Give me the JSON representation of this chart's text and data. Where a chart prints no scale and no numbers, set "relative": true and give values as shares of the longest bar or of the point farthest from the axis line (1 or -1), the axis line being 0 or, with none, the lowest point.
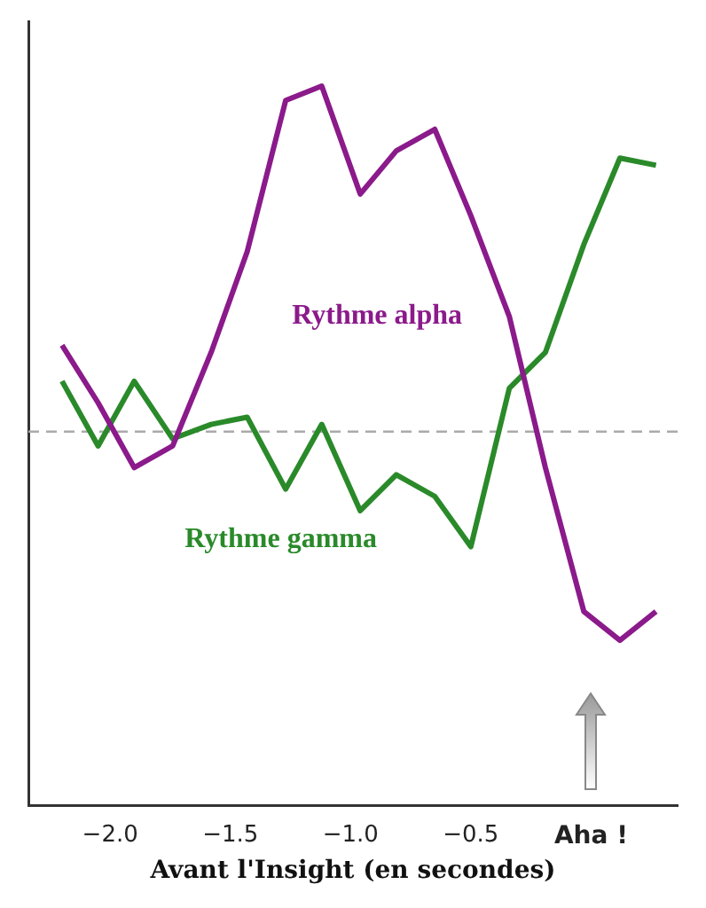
{
  "chart_data": {
    "type": "line",
    "xlabel": "Avant l'Insight (en secondes)",
    "relative": true,
    "legend": false,
    "grid": false,
    "marker": "none",
    "line_style": "solid",
    "xlim": [
      -2.34,
      0.36
    ],
    "xticks": [
      {
        "value": -2.0,
        "label": "−2.0"
      },
      {
        "value": -1.5,
        "label": "−1.5"
      },
      {
        "value": -1.0,
        "label": "−1.0"
      },
      {
        "value": -0.5,
        "label": "−0.5"
      },
      {
        "value": 0,
        "label": "Aha !"
      }
    ],
    "ref_lines": [
      {
        "axis": "y",
        "value": 0.52,
        "color": "#aaaaaa",
        "line_style": "dashed"
      }
    ],
    "series": [
      {
        "name": "Rythme alpha",
        "color": "#8b1a8b",
        "x": [
          -2.2,
          -2.05,
          -1.9,
          -1.74,
          -1.58,
          -1.43,
          -1.27,
          -1.12,
          -0.96,
          -0.81,
          -0.65,
          -0.5,
          -0.34,
          -0.19,
          -0.03,
          0.12,
          0.27
        ],
        "values": [
          0.64,
          0.56,
          0.47,
          0.5,
          0.63,
          0.77,
          0.98,
          1.0,
          0.85,
          0.91,
          0.94,
          0.82,
          0.68,
          0.47,
          0.27,
          0.23,
          0.27
        ]
      },
      {
        "name": "Rythme gamma",
        "color": "#2a8a2a",
        "x": [
          -2.2,
          -2.05,
          -1.9,
          -1.74,
          -1.58,
          -1.43,
          -1.27,
          -1.12,
          -0.96,
          -0.81,
          -0.65,
          -0.5,
          -0.34,
          -0.19,
          -0.03,
          0.12,
          0.27
        ],
        "values": [
          0.59,
          0.5,
          0.59,
          0.51,
          0.53,
          0.54,
          0.44,
          0.53,
          0.41,
          0.46,
          0.43,
          0.36,
          0.58,
          0.63,
          0.78,
          0.9,
          0.89
        ]
      }
    ]
  }
}
